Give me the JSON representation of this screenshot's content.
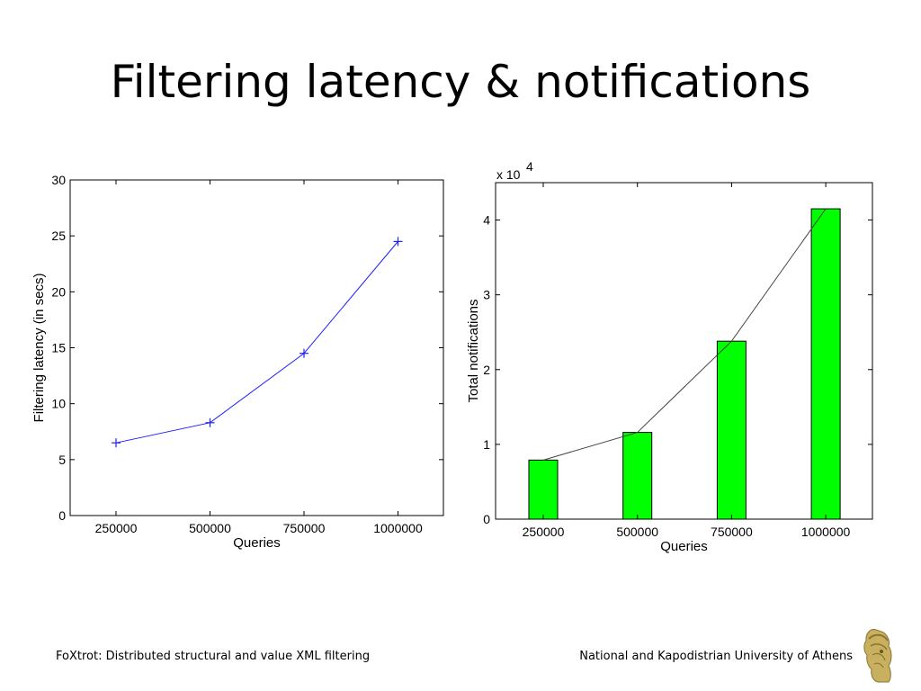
{
  "slide": {
    "title": "Filtering latency & notifications",
    "footer_left": "FoXtrot: Distributed structural and value XML filtering",
    "footer_right": "National and Kapodistrian University of Athens"
  },
  "colors": {
    "line": "#1f1fff",
    "bar": "#00ff00",
    "trend": "#444444"
  },
  "chart_data": [
    {
      "type": "line",
      "categories": [
        "250000",
        "500000",
        "750000",
        "1000000"
      ],
      "series": [
        {
          "values": [
            6.5,
            8.3,
            14.5,
            24.5
          ],
          "marker": "+"
        }
      ],
      "xlabel": "Queries",
      "ylabel": "Filtering latency (in secs)",
      "ylim": [
        0,
        30
      ],
      "yticks": [
        0,
        5,
        10,
        15,
        20,
        25,
        30
      ],
      "grid": false
    },
    {
      "type": "bar",
      "categories": [
        "250000",
        "500000",
        "750000",
        "1000000"
      ],
      "values": [
        7900,
        11600,
        23800,
        41500
      ],
      "xlabel": "Queries",
      "ylabel": "Total notifications",
      "scale_label": "x 10",
      "scale_exponent": "4",
      "ylim": [
        0,
        45000
      ],
      "yticks": [
        0,
        1,
        2,
        3,
        4
      ],
      "trend_line": true,
      "grid": false
    }
  ]
}
